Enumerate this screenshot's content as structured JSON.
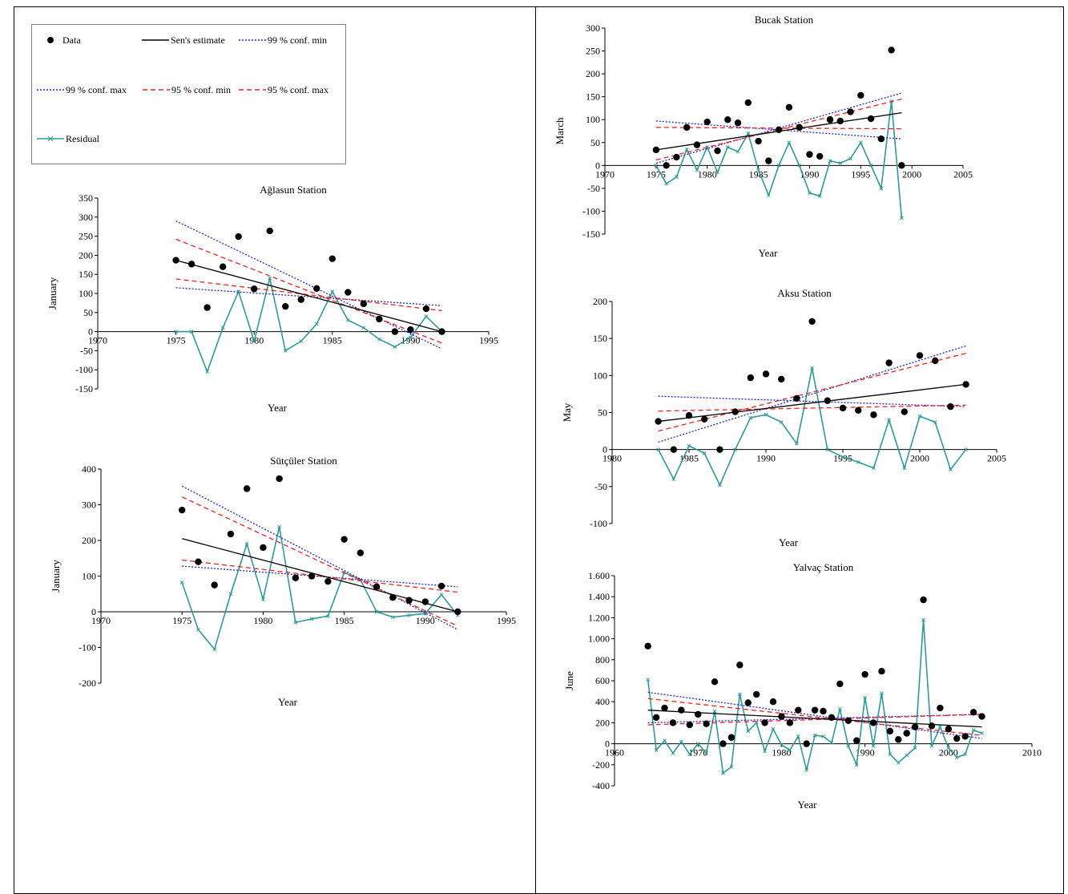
{
  "colors": {
    "data_marker": "#000000",
    "sens_estimate": "#000000",
    "conf99": "#2222dd",
    "conf95": "#ee2222",
    "residual": "#2e9a9a"
  },
  "legend": {
    "data": "Data",
    "sens": "Sen's estimate",
    "c99min": "99 % conf. min",
    "c99max": "99 % conf. max",
    "c95min": "95 % conf. min",
    "c95max": "95 % conf. max",
    "residual": "Residual"
  },
  "chart_data": [
    {
      "id": "aglasun",
      "type": "scatter",
      "title": "Ağlasun Station",
      "xlabel": "Year",
      "ylabel": "January",
      "xlim": [
        1970,
        1995
      ],
      "ylim": [
        -150,
        350
      ],
      "xticks": [
        1970,
        1975,
        1980,
        1985,
        1990,
        1995
      ],
      "xtick_labels": [
        "1970",
        "1975",
        "1980",
        "1985",
        "1990",
        "1995"
      ],
      "yticks": [
        -150,
        -100,
        -50,
        0,
        50,
        100,
        150,
        200,
        250,
        300,
        350
      ],
      "ytick_labels": [
        "-150",
        "-100",
        "-50",
        "0",
        "50",
        "100",
        "150",
        "200",
        "250",
        "300",
        "350"
      ],
      "data": {
        "x": [
          1975,
          1976,
          1977,
          1978,
          1979,
          1980,
          1981,
          1982,
          1983,
          1984,
          1985,
          1986,
          1987,
          1988,
          1989,
          1990,
          1991,
          1992
        ],
        "y": [
          187,
          177,
          63,
          170,
          249,
          112,
          264,
          66,
          84,
          113,
          191,
          103,
          73,
          33,
          0,
          5,
          60,
          0
        ]
      },
      "residual": {
        "x": [
          1975,
          1976,
          1977,
          1978,
          1979,
          1980,
          1981,
          1982,
          1983,
          1984,
          1985,
          1986,
          1987,
          1988,
          1989,
          1990,
          1991,
          1992
        ],
        "y": [
          0,
          0,
          -105,
          10,
          105,
          -25,
          140,
          -50,
          -25,
          20,
          105,
          30,
          10,
          -20,
          -40,
          -15,
          40,
          0
        ]
      },
      "lines": {
        "sens": [
          [
            1975,
            187
          ],
          [
            1992,
            0
          ]
        ],
        "c99min": [
          [
            1975,
            115
          ],
          [
            1992,
            68
          ]
        ],
        "c99max": [
          [
            1975,
            290
          ],
          [
            1992,
            -45
          ]
        ],
        "c95min": [
          [
            1975,
            138
          ],
          [
            1992,
            55
          ]
        ],
        "c95max": [
          [
            1975,
            242
          ],
          [
            1992,
            -30
          ]
        ]
      }
    },
    {
      "id": "sutculer",
      "type": "scatter",
      "title": "Sütçüler Station",
      "xlabel": "Year",
      "ylabel": "January",
      "xlim": [
        1970,
        1995
      ],
      "ylim": [
        -200,
        400
      ],
      "xticks": [
        1970,
        1975,
        1980,
        1985,
        1990,
        1995
      ],
      "xtick_labels": [
        "1970",
        "1975",
        "1980",
        "1985",
        "1990",
        "1995"
      ],
      "yticks": [
        -200,
        -100,
        0,
        100,
        200,
        300,
        400
      ],
      "ytick_labels": [
        "-200",
        "-100",
        "0",
        "100",
        "200",
        "300",
        "400"
      ],
      "data": {
        "x": [
          1975,
          1976,
          1977,
          1978,
          1979,
          1980,
          1981,
          1982,
          1983,
          1984,
          1985,
          1986,
          1987,
          1988,
          1989,
          1990,
          1991,
          1992
        ],
        "y": [
          285,
          140,
          75,
          218,
          345,
          180,
          373,
          95,
          100,
          85,
          203,
          165,
          70,
          40,
          32,
          28,
          72,
          0
        ]
      },
      "residual": {
        "x": [
          1975,
          1976,
          1977,
          1978,
          1979,
          1980,
          1981,
          1982,
          1983,
          1984,
          1985,
          1986,
          1987,
          1988,
          1989,
          1990,
          1991,
          1992
        ],
        "y": [
          82,
          -50,
          -105,
          50,
          190,
          35,
          238,
          -30,
          -20,
          -12,
          110,
          90,
          0,
          -15,
          -10,
          -5,
          48,
          -10
        ]
      },
      "lines": {
        "sens": [
          [
            1975,
            205
          ],
          [
            1992,
            0
          ]
        ],
        "c99min": [
          [
            1975,
            128
          ],
          [
            1992,
            70
          ]
        ],
        "c99max": [
          [
            1975,
            352
          ],
          [
            1992,
            -50
          ]
        ],
        "c95min": [
          [
            1975,
            145
          ],
          [
            1992,
            55
          ]
        ],
        "c95max": [
          [
            1975,
            322
          ],
          [
            1992,
            -40
          ]
        ]
      }
    },
    {
      "id": "bucak",
      "type": "scatter",
      "title": "Bucak Station",
      "xlabel": "Year",
      "ylabel": "March",
      "xlim": [
        1970,
        2005
      ],
      "ylim": [
        -150,
        300
      ],
      "xticks": [
        1970,
        1975,
        1980,
        1985,
        1990,
        1995,
        2000,
        2005
      ],
      "xtick_labels": [
        "1970",
        "1975",
        "1980",
        "1985",
        "1990",
        "1995",
        "2000",
        "2005"
      ],
      "yticks": [
        -150,
        -100,
        -50,
        0,
        50,
        100,
        150,
        200,
        250,
        300
      ],
      "ytick_labels": [
        "-150",
        "-100",
        "-50",
        "0",
        "50",
        "100",
        "150",
        "200",
        "250",
        "300"
      ],
      "data": {
        "x": [
          1975,
          1976,
          1977,
          1978,
          1979,
          1980,
          1981,
          1982,
          1983,
          1984,
          1985,
          1986,
          1987,
          1988,
          1989,
          1990,
          1991,
          1992,
          1993,
          1994,
          1995,
          1996,
          1997,
          1998,
          1999
        ],
        "y": [
          34,
          0,
          18,
          83,
          45,
          95,
          32,
          100,
          93,
          137,
          53,
          10,
          78,
          127,
          83,
          24,
          20,
          100,
          97,
          117,
          153,
          102,
          58,
          252,
          0
        ]
      },
      "residual": {
        "x": [
          1975,
          1976,
          1977,
          1978,
          1979,
          1980,
          1981,
          1982,
          1983,
          1984,
          1985,
          1986,
          1987,
          1988,
          1989,
          1990,
          1991,
          1992,
          1993,
          1994,
          1995,
          1996,
          1997,
          1998,
          1999
        ],
        "y": [
          0,
          -40,
          -25,
          35,
          -10,
          40,
          -15,
          40,
          30,
          70,
          -10,
          -65,
          0,
          50,
          0,
          -60,
          -67,
          10,
          5,
          15,
          50,
          0,
          -50,
          140,
          -115
        ]
      },
      "lines": {
        "sens": [
          [
            1975,
            34
          ],
          [
            1999,
            115
          ]
        ],
        "c99min": [
          [
            1975,
            97
          ],
          [
            1999,
            58
          ]
        ],
        "c99max": [
          [
            1975,
            5
          ],
          [
            1999,
            158
          ]
        ],
        "c95min": [
          [
            1975,
            83
          ],
          [
            1999,
            80
          ]
        ],
        "c95max": [
          [
            1975,
            12
          ],
          [
            1999,
            145
          ]
        ]
      }
    },
    {
      "id": "aksu",
      "type": "scatter",
      "title": "Aksu Station",
      "xlabel": "Year",
      "ylabel": "May",
      "xlim": [
        1980,
        2005
      ],
      "ylim": [
        -100,
        200
      ],
      "xticks": [
        1980,
        1985,
        1990,
        1995,
        2000,
        2005
      ],
      "xtick_labels": [
        "1980",
        "1985",
        "1990",
        "1995",
        "2000",
        "2005"
      ],
      "yticks": [
        -100,
        -50,
        0,
        50,
        100,
        150,
        200
      ],
      "ytick_labels": [
        "-100",
        "-50",
        "0",
        "50",
        "100",
        "150",
        "200"
      ],
      "data": {
        "x": [
          1983,
          1984,
          1985,
          1986,
          1987,
          1988,
          1989,
          1990,
          1991,
          1992,
          1993,
          1994,
          1995,
          1996,
          1997,
          1998,
          1999,
          2000,
          2001,
          2002,
          2003
        ],
        "y": [
          38,
          0,
          46,
          41,
          0,
          51,
          97,
          102,
          95,
          69,
          173,
          66,
          56,
          53,
          47,
          117,
          51,
          127,
          120,
          58,
          88
        ]
      },
      "residual": {
        "x": [
          1983,
          1984,
          1985,
          1986,
          1987,
          1988,
          1989,
          1990,
          1991,
          1992,
          1993,
          1994,
          1995,
          1996,
          1997,
          1998,
          1999,
          2000,
          2001,
          2002,
          2003
        ],
        "y": [
          0,
          -40,
          5,
          -5,
          -48,
          0,
          43,
          47,
          37,
          8,
          110,
          0,
          -10,
          -17,
          -25,
          40,
          -25,
          45,
          37,
          -27,
          0
        ]
      },
      "lines": {
        "sens": [
          [
            1983,
            38
          ],
          [
            2003,
            88
          ]
        ],
        "c99min": [
          [
            1983,
            72
          ],
          [
            2003,
            58
          ]
        ],
        "c99max": [
          [
            1983,
            10
          ],
          [
            2003,
            140
          ]
        ],
        "c95min": [
          [
            1983,
            52
          ],
          [
            2003,
            60
          ]
        ],
        "c95max": [
          [
            1983,
            25
          ],
          [
            2003,
            130
          ]
        ]
      }
    },
    {
      "id": "yalvac",
      "type": "scatter",
      "title": "Yalvaç Station",
      "xlabel": "Year",
      "ylabel": "June",
      "xlim": [
        1960,
        2010
      ],
      "ylim": [
        -400,
        1600
      ],
      "xticks": [
        1960,
        1970,
        1980,
        1990,
        2000,
        2010
      ],
      "xtick_labels": [
        "1960",
        "1970",
        "1980",
        "1990",
        "2000",
        "2010"
      ],
      "yticks": [
        -400,
        -200,
        0,
        200,
        400,
        600,
        800,
        1000,
        1200,
        1400,
        1600
      ],
      "ytick_labels": [
        "-400",
        "-200",
        "0",
        "200",
        "400",
        "600",
        "800",
        "1.000",
        "1.200",
        "1.400",
        "1.600"
      ],
      "data": {
        "x": [
          1964,
          1965,
          1966,
          1967,
          1968,
          1969,
          1970,
          1971,
          1972,
          1973,
          1974,
          1975,
          1976,
          1977,
          1978,
          1979,
          1980,
          1981,
          1982,
          1983,
          1984,
          1985,
          1986,
          1987,
          1988,
          1989,
          1990,
          1991,
          1992,
          1993,
          1994,
          1995,
          1996,
          1997,
          1998,
          1999,
          2000,
          2001,
          2002,
          2003,
          2004
        ],
        "y": [
          930,
          250,
          340,
          200,
          320,
          180,
          280,
          190,
          590,
          0,
          60,
          750,
          390,
          470,
          200,
          400,
          260,
          200,
          320,
          0,
          320,
          310,
          250,
          570,
          220,
          30,
          660,
          200,
          690,
          120,
          40,
          100,
          160,
          1370,
          170,
          340,
          140,
          50,
          70,
          300,
          260
        ]
      },
      "residual": {
        "x": [
          1964,
          1965,
          1966,
          1967,
          1968,
          1969,
          1970,
          1971,
          1972,
          1973,
          1974,
          1975,
          1976,
          1977,
          1978,
          1979,
          1980,
          1981,
          1982,
          1983,
          1984,
          1985,
          1986,
          1987,
          1988,
          1989,
          1990,
          1991,
          1992,
          1993,
          1994,
          1995,
          1996,
          1997,
          1998,
          1999,
          2000,
          2001,
          2002,
          2003,
          2004
        ],
        "y": [
          610,
          -60,
          30,
          -90,
          20,
          -100,
          0,
          -90,
          310,
          -280,
          -220,
          470,
          120,
          200,
          -70,
          140,
          -10,
          -60,
          70,
          -250,
          80,
          70,
          10,
          330,
          -20,
          -200,
          440,
          -20,
          480,
          -100,
          -180,
          -110,
          -40,
          1180,
          -20,
          160,
          -40,
          -130,
          -100,
          130,
          100
        ]
      },
      "lines": {
        "sens": [
          [
            1964,
            320
          ],
          [
            2004,
            160
          ]
        ],
        "c99min": [
          [
            1964,
            200
          ],
          [
            2004,
            280
          ]
        ],
        "c99max": [
          [
            1964,
            490
          ],
          [
            2004,
            50
          ]
        ],
        "c95min": [
          [
            1964,
            180
          ],
          [
            2004,
            280
          ]
        ],
        "c95max": [
          [
            1964,
            430
          ],
          [
            2004,
            80
          ]
        ]
      }
    }
  ]
}
